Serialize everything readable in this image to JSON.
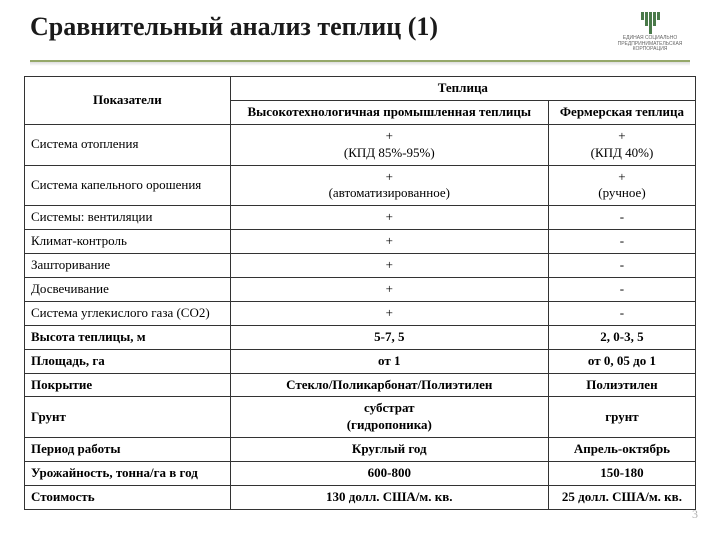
{
  "title": "Сравнительный анализ теплиц (1)",
  "logo_text": "ЕДИНАЯ СОЦИАЛЬНО ПРЕДПРИНИМАТЕЛЬСКАЯ КОРПОРАЦИЯ",
  "table": {
    "header_col1": "Показатели",
    "header_span": "Теплица",
    "header_col2": "Высокотехнологичная промышленная теплицы",
    "header_col3": "Фермерская теплица",
    "rows": [
      {
        "label": "Система отопления",
        "c2": "+\n(КПД 85%-95%)",
        "c3": "+\n(КПД 40%)",
        "bold": false
      },
      {
        "label": "Система капельного орошения",
        "c2": "+\n(автоматизированное)",
        "c3": "+\n(ручное)",
        "bold": false
      },
      {
        "label": "Системы: вентиляции",
        "c2": "+",
        "c3": "-",
        "bold": false
      },
      {
        "label": "Климат-контроль",
        "c2": "+",
        "c3": "-",
        "bold": false
      },
      {
        "label": "Зашторивание",
        "c2": "+",
        "c3": "-",
        "bold": false
      },
      {
        "label": "Досвечивание",
        "c2": "+",
        "c3": "-",
        "bold": false
      },
      {
        "label": "Система углекислого газа (СО2)",
        "c2": "+",
        "c3": "-",
        "bold": false
      },
      {
        "label": "Высота теплицы, м",
        "c2": "5-7, 5",
        "c3": "2, 0-3, 5",
        "bold": true
      },
      {
        "label": "Площадь, га",
        "c2": "от 1",
        "c3": "от 0, 05 до 1",
        "bold": true
      },
      {
        "label": "Покрытие",
        "c2": "Стекло/Поликарбонат/Полиэтилен",
        "c3": "Полиэтилен",
        "bold": true
      },
      {
        "label": "Грунт",
        "c2": "субстрат\n(гидропоника)",
        "c3": "грунт",
        "bold": true
      },
      {
        "label": "Период работы",
        "c2": "Круглый год",
        "c3": "Апрель-октябрь",
        "bold": true
      },
      {
        "label": "Урожайность, тонна/га в год",
        "c2": "600-800",
        "c3": "150-180",
        "bold": true
      },
      {
        "label": "Стоимость",
        "c2": "130 долл. США/м. кв.",
        "c3": "25 долл. США/м. кв.",
        "bold": true
      }
    ]
  },
  "page_number": "3",
  "colors": {
    "accent": "#95a86a",
    "text": "#1a1a1a",
    "border": "#333333"
  }
}
